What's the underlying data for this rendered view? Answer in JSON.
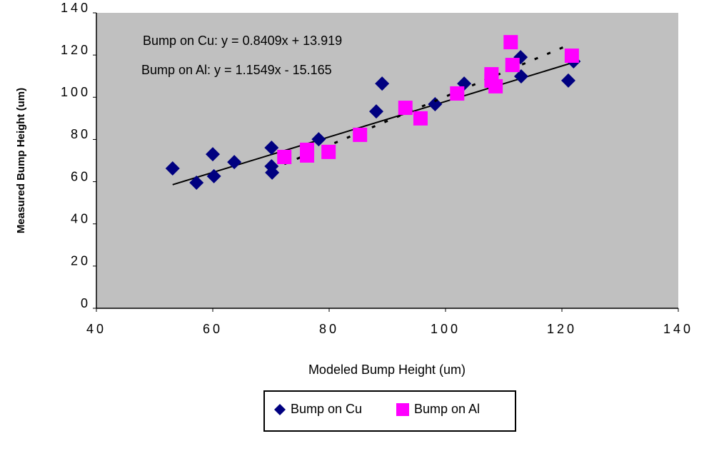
{
  "chart_data": {
    "type": "scatter",
    "xlabel": "Modeled Bump Height (um)",
    "ylabel": "Measured Bump Height (um)",
    "annotations": [
      "Bump on Cu: y = 0.8409x + 13.919",
      "Bump on Al: y = 1.1549x - 15.165"
    ],
    "xlim": [
      40,
      140
    ],
    "xticks": [
      40,
      60,
      80,
      100,
      120,
      140
    ],
    "ylim": [
      0,
      140
    ],
    "yticks": [
      0,
      20,
      40,
      60,
      80,
      100,
      120,
      140
    ],
    "legend": "bottom",
    "series": [
      {
        "name": "Bump on Cu",
        "color": "#000080",
        "marker": "diamond",
        "trendline": {
          "slope": 0.8409,
          "intercept": 13.919,
          "style": "solid"
        },
        "x": [
          53.1,
          57.2,
          60,
          60.2,
          63.7,
          70.1,
          70.1,
          70.2,
          78.2,
          88.1,
          89.1,
          98.2,
          103.2,
          112.9,
          113,
          121.1,
          122
        ],
        "values": [
          66.3,
          59.5,
          73,
          62.6,
          69.3,
          76.1,
          67.3,
          64.3,
          80.1,
          93.3,
          106.5,
          96.7,
          106.5,
          119,
          109.9,
          107.9,
          117
        ]
      },
      {
        "name": "Bump on Al",
        "color": "#ff00ff",
        "marker": "square",
        "trendline": {
          "slope": 1.1549,
          "intercept": -15.165,
          "style": "dotted"
        },
        "x": [
          72.3,
          76.2,
          76.2,
          79.9,
          85.3,
          93.1,
          95.7,
          102,
          107.9,
          107.9,
          108.6,
          111.2,
          111.5,
          121.7
        ],
        "values": [
          71.7,
          75.1,
          72.4,
          74.1,
          82.2,
          95,
          90,
          101.8,
          110.9,
          107.9,
          105.2,
          126.1,
          115.3,
          119.7
        ]
      }
    ]
  }
}
